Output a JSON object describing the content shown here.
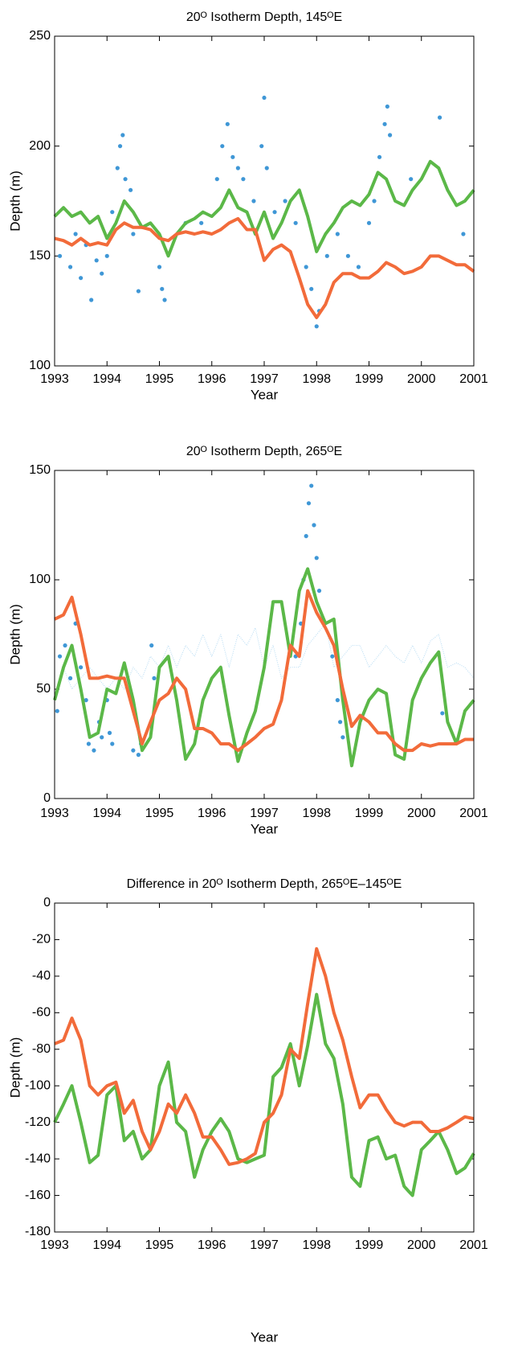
{
  "chart_data": [
    {
      "type": "line",
      "title": "20ᴼ Isotherm Depth, 145ᴼE",
      "x_label": "Year",
      "y_label": "Depth (m)",
      "xlim": [
        1993,
        2001
      ],
      "xticks": [
        1993,
        1994,
        1995,
        1996,
        1997,
        1998,
        1999,
        2000,
        2001
      ],
      "ylim": [
        100,
        250
      ],
      "yticks": [
        100,
        150,
        200,
        250
      ],
      "x": [
        1993,
        1993.17,
        1993.33,
        1993.5,
        1993.67,
        1993.83,
        1994,
        1994.17,
        1994.33,
        1994.5,
        1994.67,
        1994.83,
        1995,
        1995.17,
        1995.33,
        1995.5,
        1995.67,
        1995.83,
        1996,
        1996.17,
        1996.33,
        1996.5,
        1996.67,
        1996.83,
        1997,
        1997.17,
        1997.33,
        1997.5,
        1997.67,
        1997.83,
        1998,
        1998.17,
        1998.33,
        1998.5,
        1998.67,
        1998.83,
        1999,
        1999.17,
        1999.33,
        1999.5,
        1999.67,
        1999.83,
        2000,
        2000.17,
        2000.33,
        2000.5,
        2000.67,
        2000.83,
        2001
      ],
      "series": [
        {
          "type": "scatter",
          "color": "#3f97d6",
          "x": [
            1993.1,
            1993.3,
            1993.4,
            1993.5,
            1993.6,
            1993.7,
            1993.8,
            1993.9,
            1994,
            1994.1,
            1994.2,
            1994.25,
            1994.3,
            1994.35,
            1994.45,
            1994.5,
            1994.6,
            1995,
            1995.05,
            1995.1,
            1995.5,
            1995.8,
            1996.1,
            1996.2,
            1996.3,
            1996.4,
            1996.5,
            1996.6,
            1996.8,
            1996.95,
            1997,
            1997.05,
            1997.2,
            1997.4,
            1997.6,
            1997.8,
            1997.9,
            1998,
            1998.05,
            1998.2,
            1998.4,
            1998.6,
            1998.8,
            1999,
            1999.1,
            1999.2,
            1999.3,
            1999.35,
            1999.4,
            1999.8,
            2000.35,
            2000.8
          ],
          "values": [
            150,
            145,
            160,
            140,
            155,
            130,
            148,
            142,
            150,
            170,
            190,
            200,
            205,
            185,
            180,
            160,
            134,
            145,
            135,
            130,
            165,
            165,
            185,
            200,
            210,
            195,
            190,
            185,
            175,
            200,
            222,
            190,
            170,
            175,
            165,
            145,
            135,
            118,
            125,
            150,
            160,
            150,
            145,
            165,
            175,
            195,
            210,
            218,
            205,
            185,
            213,
            160
          ]
        },
        {
          "type": "line",
          "color": "#5bb848",
          "values": [
            168,
            172,
            168,
            170,
            165,
            168,
            158,
            165,
            175,
            170,
            163,
            165,
            160,
            150,
            160,
            165,
            167,
            170,
            168,
            172,
            180,
            172,
            170,
            160,
            170,
            158,
            165,
            175,
            180,
            168,
            152,
            160,
            165,
            172,
            175,
            173,
            178,
            188,
            185,
            175,
            173,
            180,
            185,
            193,
            190,
            180,
            173,
            175,
            180
          ]
        },
        {
          "type": "line",
          "color": "#f26b3a",
          "values": [
            158,
            157,
            155,
            158,
            155,
            156,
            155,
            162,
            165,
            163,
            163,
            162,
            158,
            157,
            160,
            161,
            160,
            161,
            160,
            162,
            165,
            167,
            162,
            162,
            148,
            153,
            155,
            152,
            140,
            128,
            122,
            128,
            138,
            142,
            142,
            140,
            140,
            143,
            147,
            145,
            142,
            143,
            145,
            150,
            150,
            148,
            146,
            146,
            143
          ]
        }
      ]
    },
    {
      "type": "line",
      "title": "20ᴼ Isotherm Depth, 265ᴼE",
      "x_label": "Year",
      "y_label": "Depth (m)",
      "xlim": [
        1993,
        2001
      ],
      "xticks": [
        1993,
        1994,
        1995,
        1996,
        1997,
        1998,
        1999,
        2000,
        2001
      ],
      "ylim": [
        0,
        150
      ],
      "yticks": [
        0,
        50,
        100,
        150
      ],
      "x": [
        1993,
        1993.17,
        1993.33,
        1993.5,
        1993.67,
        1993.83,
        1994,
        1994.17,
        1994.33,
        1994.5,
        1994.67,
        1994.83,
        1995,
        1995.17,
        1995.33,
        1995.5,
        1995.67,
        1995.83,
        1996,
        1996.17,
        1996.33,
        1996.5,
        1996.67,
        1996.83,
        1997,
        1997.17,
        1997.33,
        1997.5,
        1997.67,
        1997.83,
        1998,
        1998.17,
        1998.33,
        1998.5,
        1998.67,
        1998.83,
        1999,
        1999.17,
        1999.33,
        1999.5,
        1999.67,
        1999.83,
        2000,
        2000.17,
        2000.33,
        2000.5,
        2000.67,
        2000.83,
        2001
      ],
      "series": [
        {
          "type": "line",
          "color": "#b5dbf3",
          "values": [
            45,
            60,
            50,
            55,
            60,
            55,
            50,
            55,
            50,
            60,
            55,
            65,
            60,
            70,
            60,
            70,
            65,
            75,
            65,
            75,
            60,
            75,
            70,
            78,
            60,
            70,
            55,
            60,
            60,
            70,
            75,
            80,
            60,
            65,
            70,
            70,
            60,
            65,
            70,
            65,
            62,
            70,
            62,
            72,
            75,
            60,
            62,
            60,
            55
          ]
        },
        {
          "type": "scatter",
          "color": "#3f97d6",
          "x": [
            1993.05,
            1993.1,
            1993.2,
            1993.3,
            1993.4,
            1993.5,
            1993.6,
            1993.65,
            1993.75,
            1993.85,
            1993.9,
            1994,
            1994.05,
            1994.1,
            1994.5,
            1994.6,
            1994.65,
            1994.85,
            1994.9,
            1997.6,
            1997.7,
            1997.75,
            1997.8,
            1997.85,
            1997.9,
            1997.95,
            1998,
            1998.05,
            1998.15,
            1998.3,
            1998.4,
            1998.45,
            1998.5,
            2000.4
          ],
          "values": [
            40,
            65,
            70,
            55,
            80,
            60,
            45,
            25,
            22,
            35,
            28,
            45,
            30,
            25,
            22,
            20,
            25,
            70,
            55,
            65,
            80,
            100,
            120,
            135,
            143,
            125,
            110,
            95,
            80,
            65,
            45,
            35,
            28,
            39
          ]
        },
        {
          "type": "line",
          "color": "#5bb848",
          "values": [
            45,
            60,
            70,
            50,
            28,
            30,
            50,
            48,
            62,
            45,
            22,
            28,
            60,
            65,
            45,
            18,
            25,
            45,
            55,
            60,
            38,
            17,
            30,
            40,
            60,
            90,
            90,
            65,
            95,
            105,
            90,
            80,
            82,
            45,
            15,
            35,
            45,
            50,
            48,
            20,
            18,
            45,
            55,
            62,
            67,
            35,
            25,
            40,
            45
          ]
        },
        {
          "type": "line",
          "color": "#f26b3a",
          "values": [
            82,
            84,
            92,
            75,
            55,
            55,
            56,
            55,
            55,
            40,
            25,
            35,
            45,
            48,
            55,
            50,
            32,
            32,
            30,
            25,
            25,
            22,
            25,
            28,
            32,
            34,
            45,
            70,
            65,
            95,
            85,
            78,
            70,
            50,
            33,
            38,
            35,
            30,
            30,
            25,
            22,
            22,
            25,
            24,
            25,
            25,
            25,
            27,
            27
          ]
        }
      ]
    },
    {
      "type": "line",
      "title": "Difference in 20ᴼ Isotherm Depth, 265ᴼE–145ᴼE",
      "x_label": "Year",
      "y_label": "Depth (m)",
      "xlim": [
        1993,
        2001
      ],
      "xticks": [
        1993,
        1994,
        1995,
        1996,
        1997,
        1998,
        1999,
        2000,
        2001
      ],
      "ylim": [
        -180,
        0
      ],
      "yticks": [
        -180,
        -160,
        -140,
        -120,
        -100,
        -80,
        -60,
        -40,
        -20,
        0
      ],
      "x": [
        1993,
        1993.17,
        1993.33,
        1993.5,
        1993.67,
        1993.83,
        1994,
        1994.17,
        1994.33,
        1994.5,
        1994.67,
        1994.83,
        1995,
        1995.17,
        1995.33,
        1995.5,
        1995.67,
        1995.83,
        1996,
        1996.17,
        1996.33,
        1996.5,
        1996.67,
        1996.83,
        1997,
        1997.17,
        1997.33,
        1997.5,
        1997.67,
        1997.83,
        1998,
        1998.17,
        1998.33,
        1998.5,
        1998.67,
        1998.83,
        1999,
        1999.17,
        1999.33,
        1999.5,
        1999.67,
        1999.83,
        2000,
        2000.17,
        2000.33,
        2000.5,
        2000.67,
        2000.83,
        2001
      ],
      "series": [
        {
          "type": "line",
          "color": "#5bb848",
          "values": [
            -120,
            -110,
            -100,
            -120,
            -142,
            -138,
            -105,
            -100,
            -130,
            -125,
            -140,
            -135,
            -100,
            -87,
            -120,
            -125,
            -150,
            -135,
            -125,
            -118,
            -125,
            -140,
            -142,
            -140,
            -138,
            -95,
            -90,
            -77,
            -100,
            -78,
            -50,
            -77,
            -85,
            -110,
            -150,
            -155,
            -130,
            -128,
            -140,
            -138,
            -155,
            -160,
            -135,
            -130,
            -125,
            -135,
            -148,
            -145,
            -137
          ]
        },
        {
          "type": "line",
          "color": "#f26b3a",
          "values": [
            -77,
            -75,
            -63,
            -75,
            -100,
            -105,
            -100,
            -98,
            -115,
            -108,
            -125,
            -135,
            -125,
            -110,
            -115,
            -105,
            -115,
            -128,
            -128,
            -135,
            -143,
            -142,
            -140,
            -137,
            -120,
            -115,
            -105,
            -80,
            -85,
            -55,
            -25,
            -40,
            -60,
            -75,
            -95,
            -112,
            -105,
            -105,
            -113,
            -120,
            -122,
            -120,
            -120,
            -125,
            -125,
            -123,
            -120,
            -117,
            -118
          ]
        }
      ]
    }
  ]
}
